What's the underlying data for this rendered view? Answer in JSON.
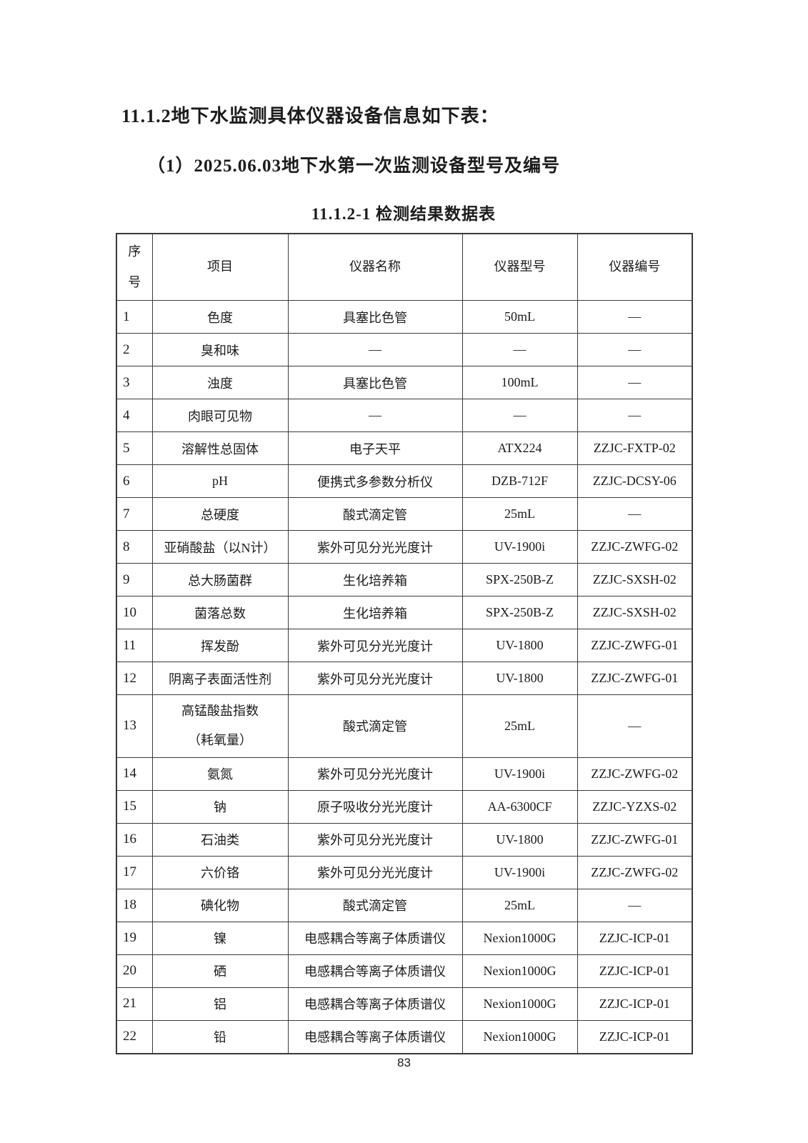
{
  "page": {
    "heading1": "11.1.2地下水监测具体仪器设备信息如下表：",
    "heading2": "（1）2025.06.03地下水第一次监测设备型号及编号",
    "table_title": "11.1.2-1  检测结果数据表",
    "page_number": "83"
  },
  "table": {
    "headers": [
      "序\n号",
      "项目",
      "仪器名称",
      "仪器型号",
      "仪器编号"
    ],
    "columns": [
      "no",
      "item",
      "instrument-name",
      "instrument-model",
      "instrument-code"
    ],
    "rows": [
      [
        "1",
        "色度",
        "具塞比色管",
        "50mL",
        "—"
      ],
      [
        "2",
        "臭和味",
        "—",
        "—",
        "—"
      ],
      [
        "3",
        "浊度",
        "具塞比色管",
        "100mL",
        "—"
      ],
      [
        "4",
        "肉眼可见物",
        "—",
        "—",
        "—"
      ],
      [
        "5",
        "溶解性总固体",
        "电子天平",
        "ATX224",
        "ZZJC-FXTP-02"
      ],
      [
        "6",
        "pH",
        "便携式多参数分析仪",
        "DZB-712F",
        "ZZJC-DCSY-06"
      ],
      [
        "7",
        "总硬度",
        "酸式滴定管",
        "25mL",
        "—"
      ],
      [
        "8",
        "亚硝酸盐（以N计）",
        "紫外可见分光光度计",
        "UV-1900i",
        "ZZJC-ZWFG-02"
      ],
      [
        "9",
        "总大肠菌群",
        "生化培养箱",
        "SPX-250B-Z",
        "ZZJC-SXSH-02"
      ],
      [
        "10",
        "菌落总数",
        "生化培养箱",
        "SPX-250B-Z",
        "ZZJC-SXSH-02"
      ],
      [
        "11",
        "挥发酚",
        "紫外可见分光光度计",
        "UV-1800",
        "ZZJC-ZWFG-01"
      ],
      [
        "12",
        "阴离子表面活性剂",
        "紫外可见分光光度计",
        "UV-1800",
        "ZZJC-ZWFG-01"
      ],
      [
        "13",
        "高锰酸盐指数\n（耗氧量）",
        "酸式滴定管",
        "25mL",
        "—"
      ],
      [
        "14",
        "氨氮",
        "紫外可见分光光度计",
        "UV-1900i",
        "ZZJC-ZWFG-02"
      ],
      [
        "15",
        "钠",
        "原子吸收分光光度计",
        "AA-6300CF",
        "ZZJC-YZXS-02"
      ],
      [
        "16",
        "石油类",
        "紫外可见分光光度计",
        "UV-1800",
        "ZZJC-ZWFG-01"
      ],
      [
        "17",
        "六价铬",
        "紫外可见分光光度计",
        "UV-1900i",
        "ZZJC-ZWFG-02"
      ],
      [
        "18",
        "碘化物",
        "酸式滴定管",
        "25mL",
        "—"
      ],
      [
        "19",
        "镍",
        "电感耦合等离子体质谱仪",
        "Nexion1000G",
        "ZZJC-ICP-01"
      ],
      [
        "20",
        "硒",
        "电感耦合等离子体质谱仪",
        "Nexion1000G",
        "ZZJC-ICP-01"
      ],
      [
        "21",
        "铝",
        "电感耦合等离子体质谱仪",
        "Nexion1000G",
        "ZZJC-ICP-01"
      ],
      [
        "22",
        "铅",
        "电感耦合等离子体质谱仪",
        "Nexion1000G",
        "ZZJC-ICP-01"
      ]
    ]
  }
}
